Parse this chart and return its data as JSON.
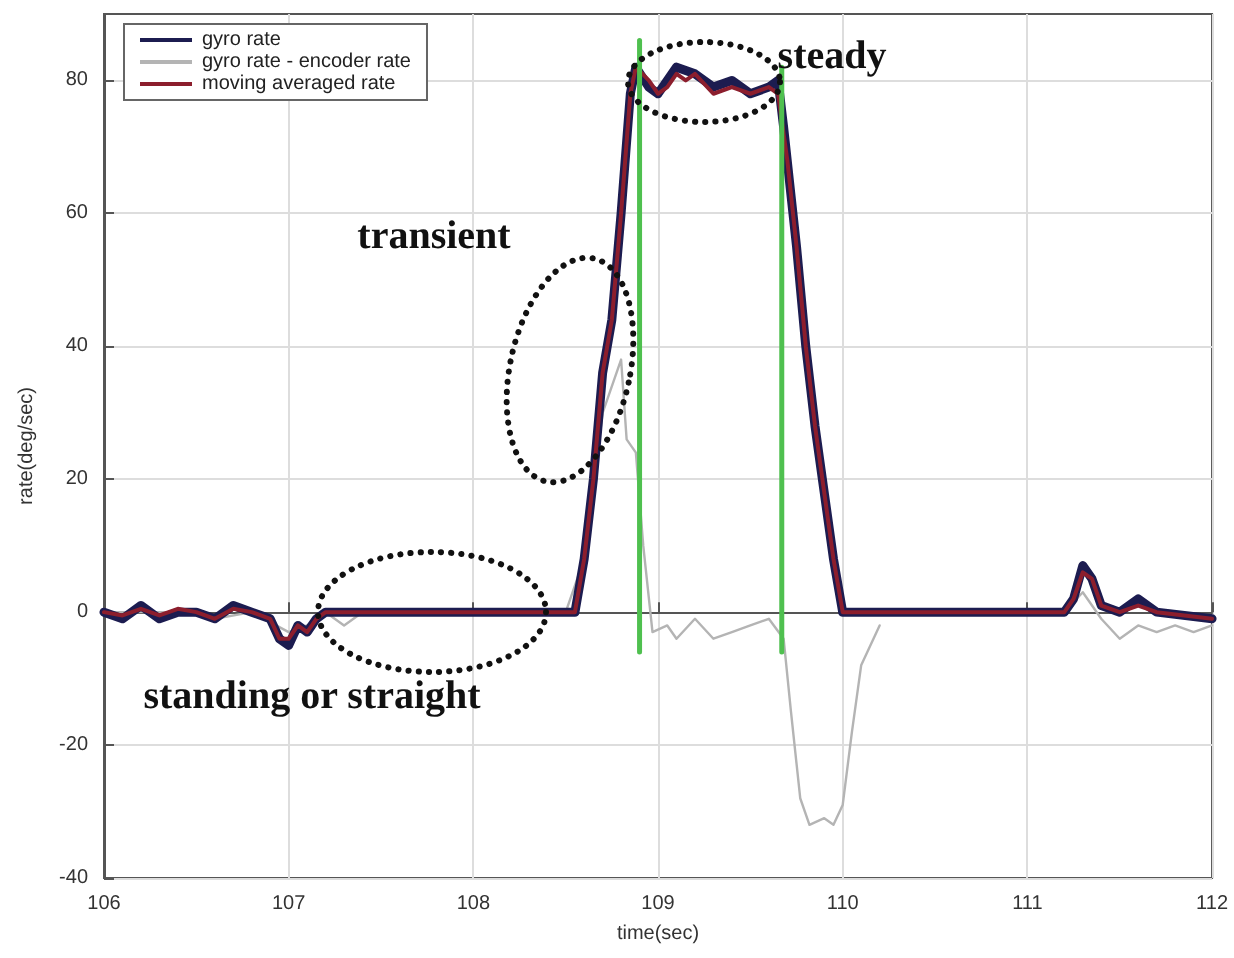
{
  "chart_data": {
    "type": "line",
    "xlabel": "time(sec)",
    "ylabel": "rate(deg/sec)",
    "xlim": [
      106,
      112
    ],
    "xticks": [
      106,
      107,
      108,
      109,
      110,
      111,
      112
    ],
    "ylim": [
      -40,
      90
    ],
    "yticks": [
      -40,
      -20,
      0,
      20,
      40,
      60,
      80
    ],
    "grid": true,
    "legend": "top left",
    "annotations": [
      "transient",
      "steady",
      "standing or straight"
    ],
    "series": [
      {
        "name": "gyro rate - encoder rate",
        "color": "#b4b4b4",
        "x": [
          106,
          106.2,
          106.4,
          106.6,
          106.8,
          107,
          107.1,
          107.2,
          107.3,
          107.4,
          108.5,
          108.6,
          108.7,
          108.8,
          108.83,
          108.88,
          108.92,
          108.97,
          109.05,
          109.1,
          109.2,
          109.3,
          109.4,
          109.5,
          109.6,
          109.68,
          109.72,
          109.77,
          109.82,
          109.9,
          109.95,
          110,
          110.05,
          110.1,
          110.2,
          110.7,
          111.2,
          111.3,
          111.4,
          111.5,
          111.6,
          111.7,
          111.8,
          111.9,
          112
        ],
        "values": [
          0,
          0,
          0,
          -1,
          0,
          -3,
          -2,
          0,
          -2,
          0,
          0,
          8,
          30,
          38,
          26,
          24,
          10,
          -3,
          -2,
          -4,
          -1,
          -4,
          -3,
          -2,
          -1,
          -4,
          -15,
          -28,
          -32,
          -31,
          -32,
          -29,
          -18,
          -8,
          -2,
          null,
          0,
          3,
          -1,
          -4,
          -2,
          -3,
          -2,
          -3,
          -2
        ]
      },
      {
        "name": "gyro rate",
        "color": "#1c1c50",
        "x": [
          106,
          106.1,
          106.2,
          106.3,
          106.4,
          106.5,
          106.6,
          106.7,
          106.8,
          106.9,
          106.95,
          107,
          107.05,
          107.1,
          107.15,
          107.2,
          108.5,
          108.55,
          108.6,
          108.65,
          108.7,
          108.75,
          108.8,
          108.85,
          108.88,
          108.95,
          109,
          109.1,
          109.2,
          109.3,
          109.4,
          109.5,
          109.6,
          109.65,
          109.68,
          109.75,
          109.8,
          109.85,
          109.9,
          109.95,
          110,
          111.2,
          111.25,
          111.3,
          111.35,
          111.4,
          111.5,
          111.6,
          111.7,
          112
        ],
        "values": [
          0,
          -1,
          1,
          -1,
          0,
          0,
          -1,
          1,
          0,
          -1,
          -4,
          -5,
          -2,
          -3,
          -1,
          0,
          0,
          0,
          8,
          20,
          36,
          44,
          60,
          78,
          82,
          79,
          78,
          82,
          81,
          79,
          80,
          78,
          79,
          80,
          73,
          55,
          40,
          28,
          18,
          8,
          0,
          0,
          2,
          7,
          5,
          1,
          0,
          2,
          0,
          -1
        ]
      },
      {
        "name": "moving averaged rate",
        "color": "#8c1e2d",
        "x": [
          106,
          106.1,
          106.2,
          106.3,
          106.4,
          106.5,
          106.6,
          106.7,
          106.8,
          106.9,
          106.95,
          107,
          107.05,
          107.1,
          107.15,
          107.2,
          108.5,
          108.55,
          108.6,
          108.65,
          108.7,
          108.75,
          108.8,
          108.85,
          108.88,
          108.95,
          109,
          109.05,
          109.1,
          109.15,
          109.2,
          109.3,
          109.4,
          109.5,
          109.6,
          109.65,
          109.7,
          109.75,
          109.8,
          109.85,
          109.9,
          109.95,
          110,
          111.2,
          111.25,
          111.3,
          111.35,
          111.4,
          111.5,
          111.6,
          111.7,
          112
        ],
        "values": [
          0,
          -0.5,
          0.5,
          -0.5,
          0.5,
          0,
          -1,
          0.5,
          0,
          -1,
          -4,
          -4,
          -2,
          -3,
          -1,
          0,
          0,
          0,
          8,
          20,
          36,
          44,
          60,
          78,
          82,
          80,
          78,
          79,
          81,
          80,
          81,
          78,
          79,
          78,
          79,
          78,
          68,
          55,
          40,
          28,
          18,
          8,
          0,
          0,
          2,
          6,
          5,
          1,
          0,
          1,
          0,
          -1
        ]
      },
      {
        "color": "#4fc04f",
        "x": [
          108.9,
          108.9
        ],
        "values": [
          86,
          -6
        ]
      },
      {
        "color": "#4fc04f",
        "x": [
          109.67,
          109.67
        ],
        "values": [
          82,
          -6
        ]
      }
    ]
  }
}
